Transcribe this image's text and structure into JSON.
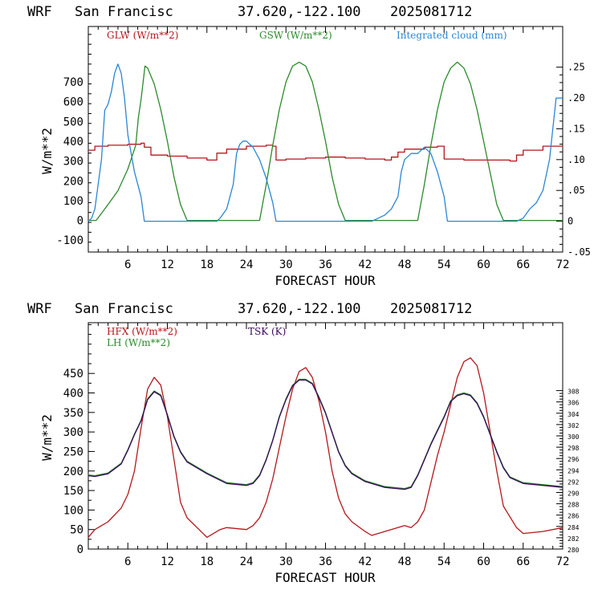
{
  "colors": {
    "red": "#b5171c",
    "green": "#2c8a2c",
    "blue": "#2a86d6",
    "purple": "#3a0a5c",
    "black": "#000000"
  },
  "chart_data": [
    {
      "type": "line",
      "header": {
        "model": "WRF",
        "site": "San Francisc",
        "coords": "37.620,-122.100",
        "date": "2025081712"
      },
      "xlabel": "FORECAST HOUR",
      "ylabel": "W/m**2",
      "xlim": [
        0,
        72
      ],
      "ylim": [
        -160,
        980
      ],
      "y2lim": [
        -0.05,
        0.316
      ],
      "xticks": [
        6,
        12,
        18,
        24,
        30,
        36,
        42,
        48,
        54,
        60,
        66,
        72
      ],
      "yticks": [
        -100,
        0,
        100,
        200,
        300,
        400,
        500,
        600,
        700
      ],
      "y2ticks": [
        {
          "v": -0.05,
          "label": "-.05"
        },
        {
          "v": 0,
          "label": "0"
        },
        {
          "v": 0.05,
          "label": ".05"
        },
        {
          "v": 0.1,
          "label": ".10"
        },
        {
          "v": 0.15,
          "label": ".15"
        },
        {
          "v": 0.2,
          "label": ".20"
        },
        {
          "v": 0.25,
          "label": ".25"
        }
      ],
      "legend": [
        "GLW (W/m**2)",
        "GSW (W/m**2)",
        "Integrated cloud (mm)"
      ],
      "series": [
        {
          "name": "GLW (W/m**2)",
          "axis": "left",
          "color": "#b5171c",
          "step": true,
          "x": [
            0,
            1,
            3,
            6,
            8,
            8.5,
            9.5,
            12,
            15,
            18,
            19,
            19.5,
            21,
            24,
            27,
            28,
            28.5,
            30,
            33,
            36,
            39,
            42,
            45,
            46,
            47,
            48,
            51,
            53,
            53.5,
            54,
            57,
            60,
            63,
            64,
            65,
            66,
            69,
            72
          ],
          "y": [
            355,
            375,
            380,
            385,
            390,
            370,
            330,
            325,
            315,
            305,
            305,
            340,
            360,
            375,
            380,
            375,
            305,
            310,
            315,
            320,
            315,
            310,
            305,
            320,
            345,
            360,
            370,
            375,
            375,
            310,
            305,
            305,
            305,
            300,
            330,
            355,
            375,
            380
          ]
        },
        {
          "name": "GSW (W/m**2)",
          "axis": "left",
          "color": "#2c8a2c",
          "x": [
            0,
            1.2,
            3,
            4.5,
            6,
            7.2,
            7.6,
            8,
            8.4,
            8.6,
            9,
            10,
            11,
            12,
            13,
            14,
            15,
            26,
            27,
            28,
            29,
            30,
            31,
            32,
            33,
            34,
            35,
            36,
            37,
            38,
            39,
            50,
            51,
            52,
            53,
            54,
            55,
            56,
            57,
            58,
            59,
            60,
            61,
            62,
            63,
            72
          ],
          "y": [
            0,
            0,
            80,
            150,
            260,
            380,
            520,
            610,
            720,
            780,
            770,
            690,
            560,
            400,
            220,
            80,
            0,
            0,
            180,
            380,
            560,
            700,
            780,
            800,
            780,
            700,
            560,
            400,
            220,
            80,
            0,
            0,
            180,
            380,
            560,
            700,
            770,
            800,
            770,
            690,
            560,
            400,
            240,
            80,
            0,
            0
          ]
        },
        {
          "name": "Integrated cloud (mm)",
          "axis": "right",
          "color": "#2a86d6",
          "x": [
            0,
            0.5,
            1,
            2,
            2.5,
            3,
            3.5,
            4,
            4.5,
            5,
            5.5,
            6,
            7,
            8,
            8.5,
            19.5,
            20,
            21,
            22,
            22.5,
            23,
            23.5,
            24,
            25,
            26,
            27,
            28,
            28.5,
            43,
            44,
            45,
            46,
            47,
            47.5,
            48,
            49,
            50,
            51,
            52,
            53,
            54,
            54.5,
            65,
            66,
            67,
            68,
            69,
            70,
            71,
            72
          ],
          "y": [
            0,
            0.005,
            0.02,
            0.1,
            0.18,
            0.19,
            0.21,
            0.24,
            0.255,
            0.24,
            0.2,
            0.14,
            0.08,
            0.04,
            0,
            0,
            0.005,
            0.02,
            0.06,
            0.11,
            0.125,
            0.13,
            0.13,
            0.12,
            0.1,
            0.07,
            0.03,
            0,
            0,
            0.005,
            0.01,
            0.02,
            0.04,
            0.08,
            0.1,
            0.11,
            0.11,
            0.12,
            0.11,
            0.08,
            0.04,
            0,
            0,
            0.005,
            0.02,
            0.03,
            0.05,
            0.1,
            0.2,
            0.2
          ]
        }
      ]
    },
    {
      "type": "line",
      "header": {
        "model": "WRF",
        "site": "San Francisc",
        "coords": "37.620,-122.100",
        "date": "2025081712"
      },
      "xlabel": "FORECAST HOUR",
      "ylabel": "W/m**2",
      "xlim": [
        0,
        72
      ],
      "ylim": [
        0,
        580
      ],
      "y2lim": [
        280,
        320
      ],
      "xticks": [
        6,
        12,
        18,
        24,
        30,
        36,
        42,
        48,
        54,
        60,
        66,
        72
      ],
      "yticks": [
        0,
        50,
        100,
        150,
        200,
        250,
        300,
        350,
        400,
        450
      ],
      "y2ticks": [
        {
          "v": 280,
          "label": "280"
        },
        {
          "v": 282,
          "label": "282"
        },
        {
          "v": 284,
          "label": "284"
        },
        {
          "v": 286,
          "label": "286"
        },
        {
          "v": 288,
          "label": "288"
        },
        {
          "v": 290,
          "label": "290"
        },
        {
          "v": 292,
          "label": "292"
        },
        {
          "v": 294,
          "label": "294"
        },
        {
          "v": 296,
          "label": "296"
        },
        {
          "v": 298,
          "label": "298"
        },
        {
          "v": 300,
          "label": "300"
        },
        {
          "v": 302,
          "label": "302"
        },
        {
          "v": 304,
          "label": "304"
        },
        {
          "v": 306,
          "label": "306"
        },
        {
          "v": 308,
          "label": "308"
        }
      ],
      "legend": [
        "HFX (W/m**2)",
        "LH  (W/m**2)",
        "TSK (K)"
      ],
      "series": [
        {
          "name": "HFX (W/m**2)",
          "axis": "left",
          "color": "#b5171c",
          "x": [
            0,
            1,
            3,
            5,
            6,
            7,
            8,
            9,
            10,
            11,
            12,
            13,
            14,
            15,
            18,
            19,
            20,
            21,
            24,
            25,
            26,
            27,
            28,
            29,
            30,
            31,
            32,
            33,
            34,
            35,
            36,
            37,
            38,
            39,
            40,
            42,
            43,
            45,
            48,
            49,
            50,
            51,
            52,
            53,
            54,
            55,
            56,
            57,
            58,
            59,
            60,
            61,
            62,
            63,
            65,
            66,
            69,
            72
          ],
          "y": [
            30,
            50,
            70,
            105,
            140,
            200,
            310,
            410,
            440,
            420,
            340,
            230,
            120,
            80,
            30,
            40,
            50,
            55,
            50,
            60,
            80,
            120,
            180,
            260,
            340,
            410,
            455,
            465,
            440,
            380,
            300,
            200,
            130,
            90,
            70,
            45,
            35,
            45,
            60,
            55,
            70,
            100,
            170,
            240,
            300,
            370,
            440,
            480,
            490,
            470,
            400,
            300,
            200,
            110,
            55,
            40,
            45,
            55
          ]
        },
        {
          "name": "LH  (W/m**2)",
          "axis": "left",
          "color": "#2c8a2c",
          "x": [
            0,
            1,
            3,
            5,
            6,
            7,
            8,
            9,
            10,
            11,
            12,
            13,
            14,
            15,
            18,
            21,
            24,
            25,
            26,
            27,
            28,
            29,
            30,
            31,
            32,
            33,
            34,
            35,
            36,
            37,
            38,
            39,
            40,
            42,
            45,
            48,
            49,
            50,
            51,
            52,
            53,
            54,
            55,
            56,
            57,
            58,
            59,
            60,
            61,
            62,
            63,
            64,
            66,
            69,
            72
          ],
          "y": [
            190,
            188,
            195,
            220,
            255,
            295,
            330,
            385,
            405,
            395,
            345,
            290,
            250,
            225,
            195,
            170,
            165,
            170,
            190,
            230,
            280,
            340,
            385,
            420,
            435,
            435,
            425,
            390,
            350,
            300,
            250,
            215,
            195,
            175,
            160,
            155,
            160,
            190,
            230,
            270,
            305,
            340,
            380,
            395,
            400,
            395,
            375,
            340,
            295,
            250,
            210,
            185,
            170,
            165,
            160
          ]
        },
        {
          "name": "TSK (K)",
          "axis": "left",
          "color": "#3a0a5c",
          "x": [
            0,
            1,
            3,
            5,
            6,
            7,
            8,
            9,
            10,
            11,
            12,
            13,
            14,
            15,
            18,
            21,
            24,
            25,
            26,
            27,
            28,
            29,
            30,
            31,
            32,
            33,
            34,
            35,
            36,
            37,
            38,
            39,
            40,
            42,
            45,
            48,
            49,
            50,
            51,
            52,
            53,
            54,
            55,
            56,
            57,
            58,
            59,
            60,
            61,
            62,
            63,
            64,
            66,
            69,
            72
          ],
          "y": [
            188,
            186,
            193,
            218,
            253,
            293,
            328,
            383,
            403,
            393,
            343,
            288,
            248,
            223,
            193,
            168,
            163,
            168,
            188,
            228,
            278,
            338,
            383,
            418,
            433,
            433,
            423,
            388,
            348,
            298,
            248,
            213,
            193,
            173,
            158,
            153,
            158,
            188,
            228,
            268,
            303,
            338,
            378,
            393,
            398,
            393,
            373,
            338,
            293,
            248,
            208,
            183,
            168,
            163,
            158
          ]
        }
      ]
    }
  ]
}
